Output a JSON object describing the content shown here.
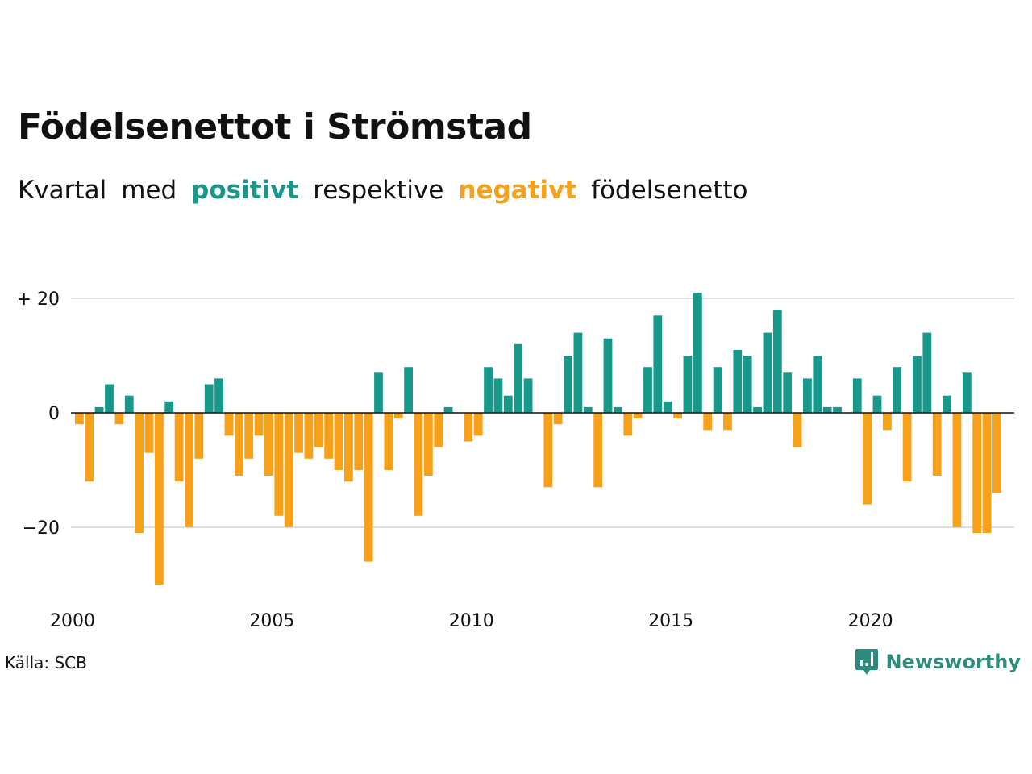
{
  "colors": {
    "positive": "#17988a",
    "negative": "#f7a11a",
    "grid": "#dddddd",
    "zero": "#111111",
    "brand": "#2e8a7c"
  },
  "header": {
    "title": "Födelsenettot i Strömstad",
    "subtitle": {
      "w1": "Kvartal",
      "w2": "med",
      "positive": "positivt",
      "w3": "respektive",
      "negative": "negativt",
      "w4": "födelsenetto"
    }
  },
  "footer": {
    "source": "Källa: SCB",
    "brand": "Newsworthy"
  },
  "icons": {
    "brand": "newsworthy-logo-icon"
  },
  "chart_data": {
    "type": "bar",
    "title": "Födelsenettot i Strömstad",
    "subtitle": "Kvartal med positivt respektive negativt födelsenetto",
    "x_start": {
      "year": 2000,
      "quarter": 1
    },
    "xtick_labels": [
      "2000",
      "2005",
      "2010",
      "2015",
      "2020"
    ],
    "ytick_labels": [
      "+ 20",
      "0",
      "−20"
    ],
    "ytick_values": [
      20,
      0,
      -20
    ],
    "ylim": [
      -30,
      22
    ],
    "grid": true,
    "values": [
      -2,
      -12,
      1,
      5,
      -2,
      3,
      -21,
      -7,
      -30,
      2,
      -12,
      -20,
      -8,
      5,
      6,
      -4,
      -11,
      -8,
      -4,
      -11,
      -18,
      -20,
      -7,
      -8,
      -6,
      -8,
      -10,
      -12,
      -10,
      -26,
      7,
      -10,
      -1,
      8,
      -18,
      -11,
      -6,
      1,
      0,
      -5,
      -4,
      8,
      6,
      3,
      12,
      6,
      0,
      -13,
      -2,
      10,
      14,
      1,
      -13,
      13,
      1,
      -4,
      -1,
      8,
      17,
      2,
      -1,
      10,
      21,
      -3,
      8,
      -3,
      11,
      10,
      1,
      14,
      18,
      7,
      -6,
      6,
      10,
      1,
      1,
      0,
      6,
      -16,
      3,
      -3,
      8,
      -12,
      10,
      14,
      -11,
      3,
      -20,
      7,
      -21,
      -21,
      -14
    ]
  }
}
